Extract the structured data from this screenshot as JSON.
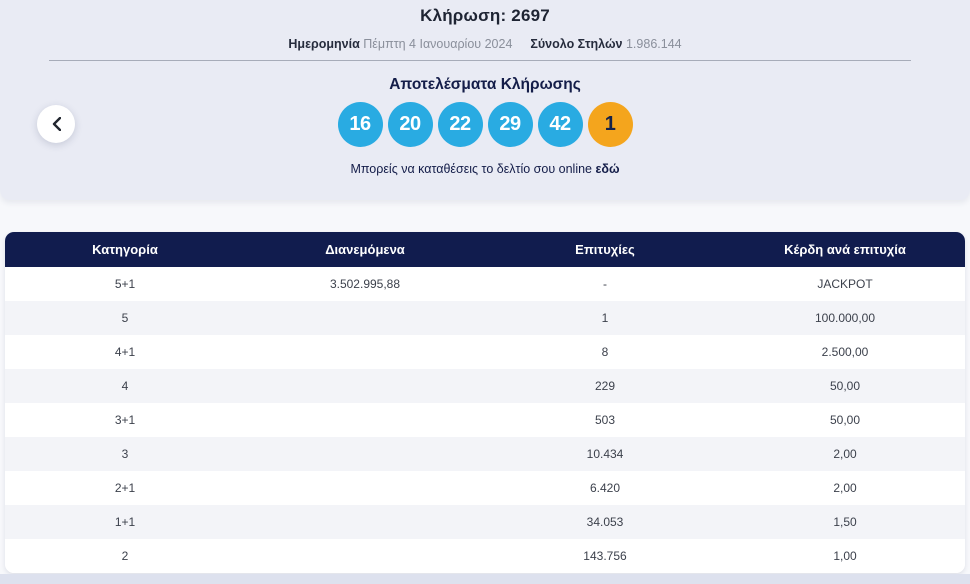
{
  "hero": {
    "title": "Κλήρωση: 2697",
    "meta": {
      "date_label": "Ημερομηνία",
      "date_value": "Πέμπτη 4 Ιανουαρίου 2024",
      "columns_label": "Σύνολο Στηλών",
      "columns_value": "1.986.144"
    },
    "results_title": "Αποτελέσματα Κλήρωσης",
    "numbers": [
      "16",
      "20",
      "22",
      "29",
      "42"
    ],
    "bonus_number": "1",
    "note_text": "Μπορείς να καταθέσεις το δελτίο σου online",
    "note_link": "εδώ"
  },
  "colors": {
    "ball_blue": "#29abe2",
    "ball_bonus_orange": "#f4a51d",
    "table_header_navy": "#111c4e",
    "hero_background": "#e9ebf4"
  },
  "table": {
    "headers": [
      "Κατηγορία",
      "Διανεμόμενα",
      "Επιτυχίες",
      "Κέρδη ανά επιτυχία"
    ],
    "rows": [
      [
        "5+1",
        "3.502.995,88",
        "-",
        "JACKPOT"
      ],
      [
        "5",
        "",
        "1",
        "100.000,00"
      ],
      [
        "4+1",
        "",
        "8",
        "2.500,00"
      ],
      [
        "4",
        "",
        "229",
        "50,00"
      ],
      [
        "3+1",
        "",
        "503",
        "50,00"
      ],
      [
        "3",
        "",
        "10.434",
        "2,00"
      ],
      [
        "2+1",
        "",
        "6.420",
        "2,00"
      ],
      [
        "1+1",
        "",
        "34.053",
        "1,50"
      ],
      [
        "2",
        "",
        "143.756",
        "1,00"
      ]
    ]
  }
}
